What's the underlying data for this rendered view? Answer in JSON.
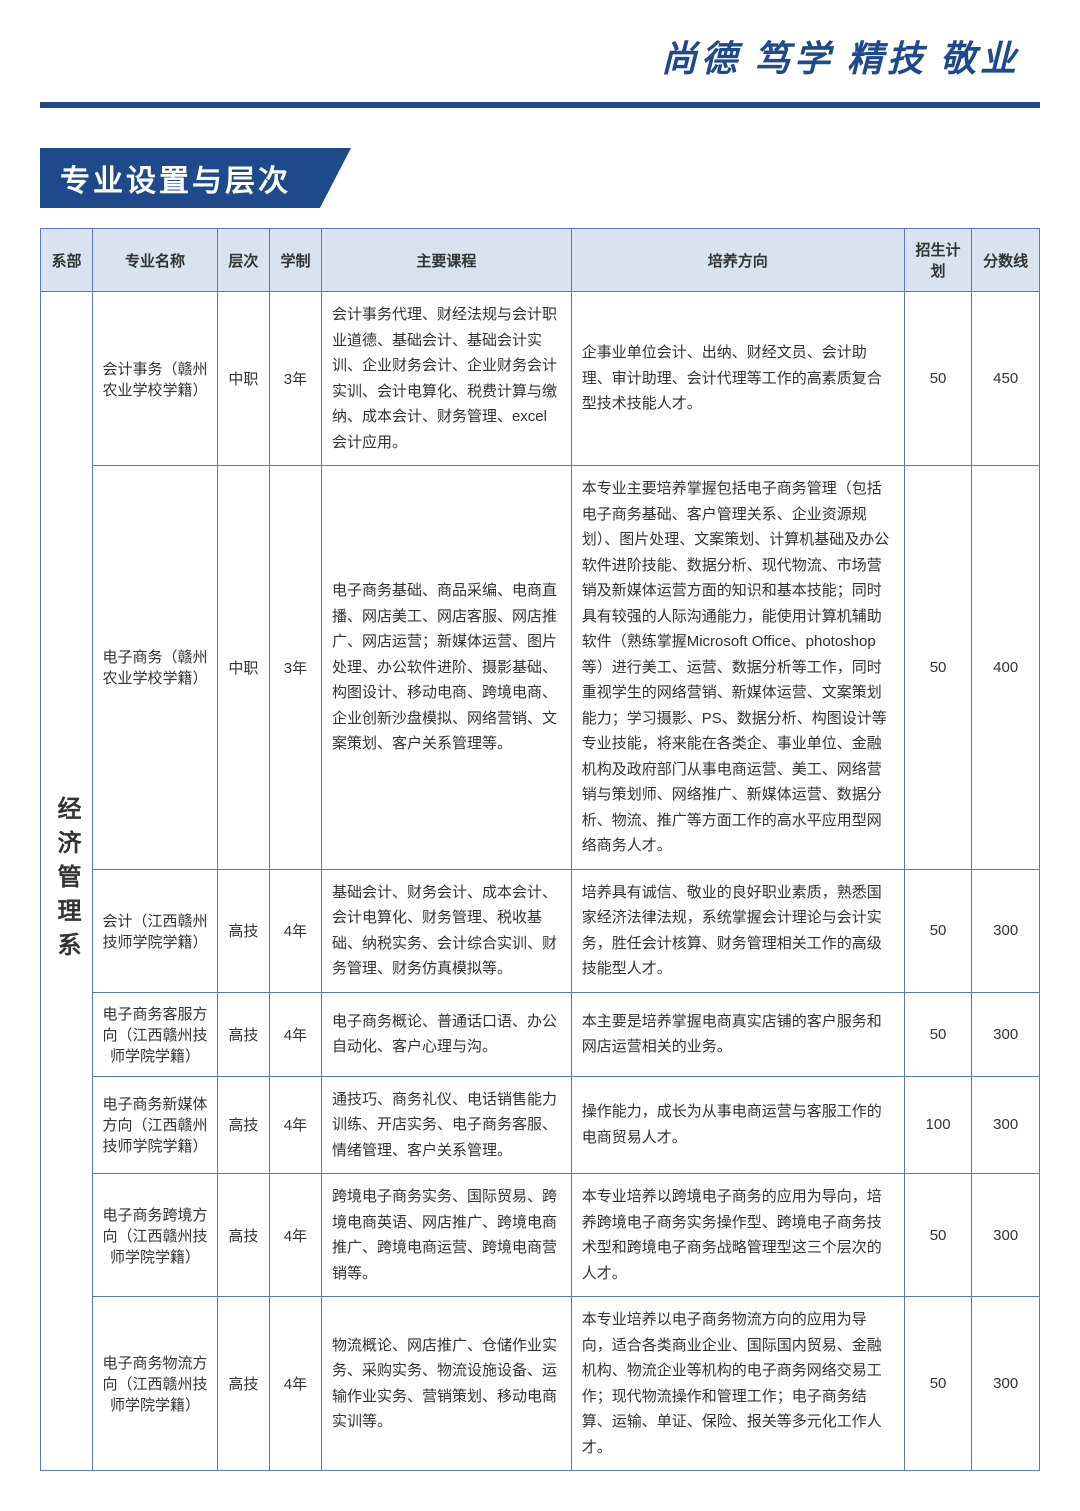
{
  "motto": "尚德  笃学  精技  敬业",
  "title": "专业设置与层次",
  "colors": {
    "primary": "#1e4a8c",
    "header_bg": "#d9e3f0",
    "border": "#5a7ab5"
  },
  "columns": [
    "系部",
    "专业名称",
    "层次",
    "学制",
    "主要课程",
    "培养方向",
    "招生计划",
    "分数线"
  ],
  "department": "经济管理系",
  "rows": [
    {
      "name": "会计事务（赣州农业学校学籍）",
      "level": "中职",
      "years": "3年",
      "course": "会计事务代理、财经法规与会计职业道德、基础会计、基础会计实训、企业财务会计、企业财务会计实训、会计电算化、税费计算与缴纳、成本会计、财务管理、excel会计应用。",
      "direction": "企事业单位会计、出纳、财经文员、会计助理、审计助理、会计代理等工作的高素质复合型技术技能人才。",
      "plan": "50",
      "score": "450"
    },
    {
      "name": "电子商务（赣州农业学校学籍）",
      "level": "中职",
      "years": "3年",
      "course": "电子商务基础、商品采编、电商直播、网店美工、网店客服、网店推广、网店运营；新媒体运营、图片处理、办公软件进阶、摄影基础、构图设计、移动电商、跨境电商、企业创新沙盘模拟、网络营销、文案策划、客户关系管理等。",
      "direction": "本专业主要培养掌握包括电子商务管理（包括电子商务基础、客户管理关系、企业资源规划）、图片处理、文案策划、计算机基础及办公软件进阶技能、数据分析、现代物流、市场营销及新媒体运营方面的知识和基本技能；同时具有较强的人际沟通能力，能使用计算机辅助软件（熟练掌握Microsoft Office、photoshop等）进行美工、运营、数据分析等工作，同时重视学生的网络营销、新媒体运营、文案策划能力；学习摄影、PS、数据分析、构图设计等专业技能，将来能在各类企、事业单位、金融机构及政府部门从事电商运营、美工、网络营销与策划师、网络推广、新媒体运营、数据分析、物流、推广等方面工作的高水平应用型网络商务人才。",
      "plan": "50",
      "score": "400"
    },
    {
      "name": "会计（江西赣州技师学院学籍）",
      "level": "高技",
      "years": "4年",
      "course": "基础会计、财务会计、成本会计、会计电算化、财务管理、税收基础、纳税实务、会计综合实训、财务管理、财务仿真模拟等。",
      "direction": "培养具有诚信、敬业的良好职业素质，熟悉国家经济法律法规，系统掌握会计理论与会计实务，胜任会计核算、财务管理相关工作的高级技能型人才。",
      "plan": "50",
      "score": "300"
    },
    {
      "name": "电子商务客服方向（江西赣州技师学院学籍）",
      "level": "高技",
      "years": "4年",
      "course": "电子商务概论、普通话口语、办公自动化、客户心理与沟。",
      "direction": "本主要是培养掌握电商真实店铺的客户服务和网店运营相关的业务。",
      "plan": "50",
      "score": "300"
    },
    {
      "name": "电子商务新媒体方向（江西赣州技师学院学籍）",
      "level": "高技",
      "years": "4年",
      "course": "通技巧、商务礼仪、电话销售能力训练、开店实务、电子商务客服、情绪管理、客户关系管理。",
      "direction": "操作能力，成长为从事电商运营与客服工作的电商贸易人才。",
      "plan": "100",
      "score": "300"
    },
    {
      "name": "电子商务跨境方向（江西赣州技师学院学籍）",
      "level": "高技",
      "years": "4年",
      "course": "跨境电子商务实务、国际贸易、跨境电商英语、网店推广、跨境电商推广、跨境电商运营、跨境电商营销等。",
      "direction": "本专业培养以跨境电子商务的应用为导向，培养跨境电子商务实务操作型、跨境电子商务技术型和跨境电子商务战略管理型这三个层次的人才。",
      "plan": "50",
      "score": "300"
    },
    {
      "name": "电子商务物流方向（江西赣州技师学院学籍）",
      "level": "高技",
      "years": "4年",
      "course": "物流概论、网店推广、仓储作业实务、采购实务、物流设施设备、运输作业实务、营销策划、移动电商实训等。",
      "direction": "本专业培养以电子商务物流方向的应用为导向，适合各类商业企业、国际国内贸易、金融机构、物流企业等机构的电子商务网络交易工作；现代物流操作和管理工作；电子商务结算、运输、单证、保险、报关等多元化工作人才。",
      "plan": "50",
      "score": "300"
    }
  ]
}
